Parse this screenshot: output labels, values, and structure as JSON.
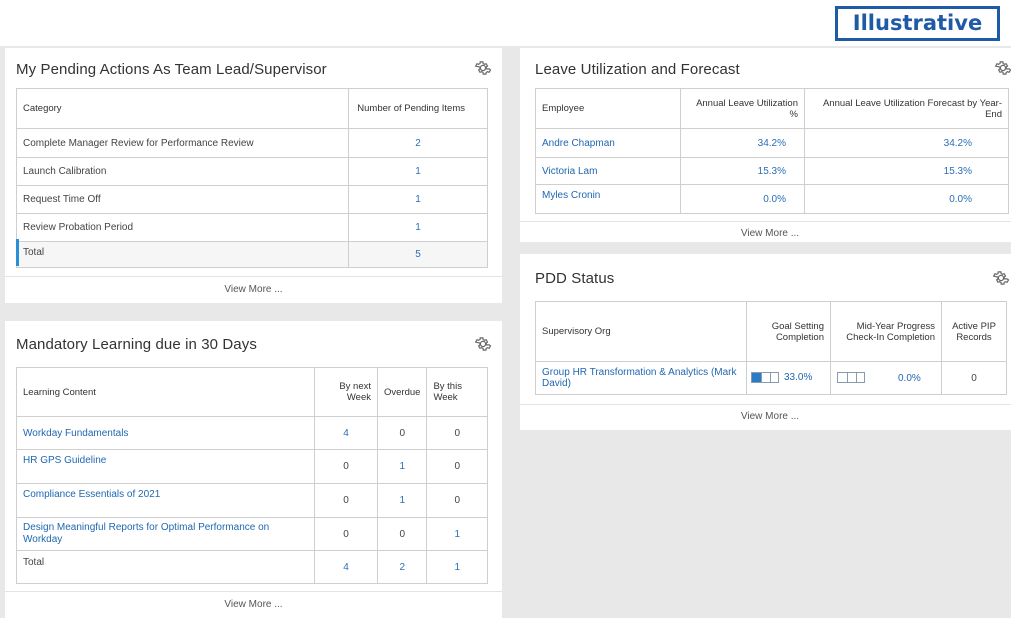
{
  "badge": "Illustrative",
  "pending": {
    "title": "My Pending Actions As Team Lead/Supervisor",
    "col_category": "Category",
    "col_number": "Number of Pending Items",
    "rows": [
      {
        "category": "Complete Manager Review for Performance Review",
        "count": "2"
      },
      {
        "category": "Launch Calibration",
        "count": "1"
      },
      {
        "category": "Request Time Off",
        "count": "1"
      },
      {
        "category": "Review Probation Period",
        "count": "1"
      }
    ],
    "total_label": "Total",
    "total_count": "5",
    "view_more": "View More ..."
  },
  "learning": {
    "title": "Mandatory Learning due in 30 Days",
    "col_content": "Learning Content",
    "col_next_week": "By next Week",
    "col_overdue": "Overdue",
    "col_this_week": "By this Week",
    "rows": [
      {
        "content": "Workday Fundamentals",
        "next": "4",
        "overdue": "0",
        "this": "0"
      },
      {
        "content": "HR GPS Guideline",
        "next": "0",
        "overdue": "1",
        "this": "0"
      },
      {
        "content": "Compliance Essentials of 2021",
        "next": "0",
        "overdue": "1",
        "this": "0"
      },
      {
        "content": "Design Meaningful Reports for Optimal Performance on Workday",
        "next": "0",
        "overdue": "0",
        "this": "1"
      }
    ],
    "total_label": "Total",
    "total_next": "4",
    "total_overdue": "2",
    "total_this": "1",
    "view_more": "View More ..."
  },
  "leave": {
    "title": "Leave Utilization and Forecast",
    "col_employee": "Employee",
    "col_util": "Annual Leave Utilization %",
    "col_forecast": "Annual Leave Utilization Forecast by Year-End",
    "rows": [
      {
        "employee": "Andre Chapman",
        "util": "34.2%",
        "forecast": "34.2%"
      },
      {
        "employee": "Victoria Lam",
        "util": "15.3%",
        "forecast": "15.3%"
      },
      {
        "employee": "Myles Cronin",
        "util": "0.0%",
        "forecast": "0.0%"
      }
    ],
    "view_more": "View More ..."
  },
  "pdd": {
    "title": "PDD Status",
    "col_org": "Supervisory Org",
    "col_goal": "Goal Setting Completion",
    "col_midyear": "Mid-Year Progress Check-In Completion",
    "col_pip": "Active PIP Records",
    "row": {
      "org": "Group HR Transformation & Analytics (Mark David)",
      "goal": "33.0%",
      "goal_fraction": 0.33,
      "midyear": "0.0%",
      "midyear_fraction": 0.0,
      "pip": "0"
    },
    "view_more": "View More ..."
  },
  "colors": {
    "accent": "#1f67b1",
    "badge": "#1f5aa6",
    "progress_fill": "#2a7cc7",
    "total_marker": "#2a8fd6"
  },
  "icons": [
    "gear-icon"
  ]
}
